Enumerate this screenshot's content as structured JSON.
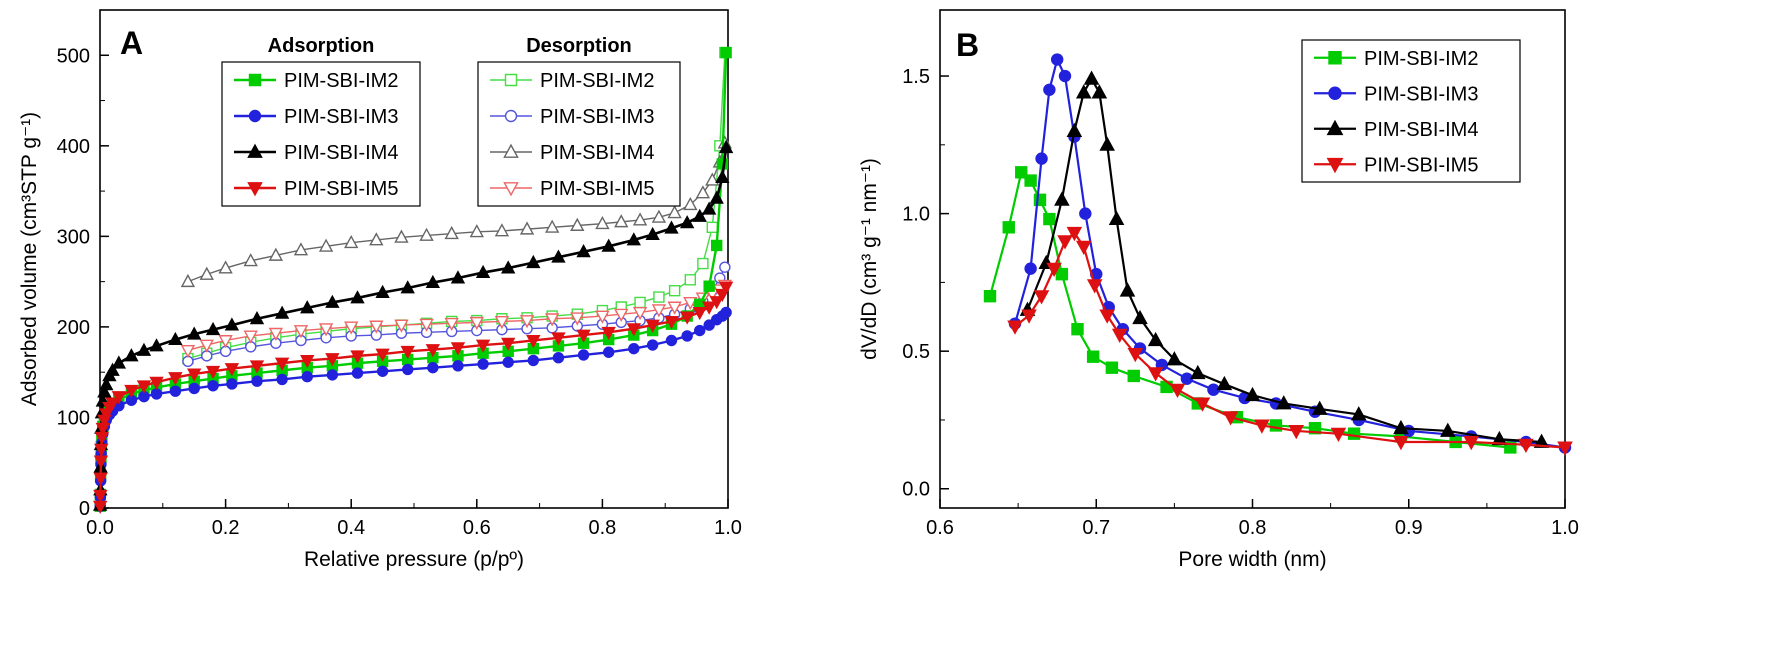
{
  "figure": {
    "background": "#ffffff",
    "panel_labels": [
      "A",
      "B"
    ]
  },
  "colors": {
    "im2_green": "#00cc00",
    "im3_blue": "#2222dd",
    "im4_black": "#000000",
    "im5_red": "#dd1111",
    "im2_green_open": "#44dd44",
    "im3_blue_open": "#5555dd",
    "im4_gray_open": "#666666",
    "im5_red_open": "#ee6666"
  },
  "chart_data": [
    {
      "type": "line",
      "panel_label": "A",
      "xlabel": "Relative pressure (p/pº)",
      "ylabel": "Adsorbed volume (cm³STP g⁻¹)",
      "xlim": [
        0,
        1.0
      ],
      "ylim": [
        0,
        550
      ],
      "x_ticks": [
        0.0,
        0.2,
        0.4,
        0.6,
        0.8,
        1.0
      ],
      "x_tick_labels": [
        "0.0",
        "0.2",
        "0.4",
        "0.6",
        "0.8",
        "1.0"
      ],
      "y_ticks": [
        0,
        100,
        200,
        300,
        400,
        500
      ],
      "y_tick_labels": [
        "0",
        "100",
        "200",
        "300",
        "400",
        "500"
      ],
      "x_minor_step": 0.1,
      "y_minor_step": 50,
      "marker_size": 5,
      "grid": false,
      "legends": [
        {
          "title": "Adsorption",
          "entries": [
            4,
            5,
            6,
            7
          ]
        },
        {
          "title": "Desorption",
          "entries": [
            0,
            1,
            2,
            3
          ]
        }
      ],
      "series": [
        {
          "name": "PIM-SBI-IM2",
          "group": "Desorption",
          "color": "#44dd44",
          "marker": "square",
          "filled": false,
          "line_width": 1.4,
          "x": [
            0.14,
            0.17,
            0.2,
            0.24,
            0.28,
            0.32,
            0.36,
            0.4,
            0.44,
            0.48,
            0.52,
            0.56,
            0.6,
            0.64,
            0.68,
            0.72,
            0.76,
            0.8,
            0.83,
            0.86,
            0.89,
            0.915,
            0.94,
            0.96,
            0.975,
            0.987,
            0.995
          ],
          "y": [
            165,
            171,
            177,
            183,
            188,
            192,
            195,
            198,
            200,
            202,
            204,
            206,
            207,
            209,
            210,
            212,
            214,
            218,
            222,
            227,
            233,
            240,
            252,
            270,
            310,
            400,
            503
          ]
        },
        {
          "name": "PIM-SBI-IM3",
          "group": "Desorption",
          "color": "#5555dd",
          "marker": "circle",
          "filled": false,
          "line_width": 1.4,
          "x": [
            0.14,
            0.17,
            0.2,
            0.24,
            0.28,
            0.32,
            0.36,
            0.4,
            0.44,
            0.48,
            0.52,
            0.56,
            0.6,
            0.64,
            0.68,
            0.72,
            0.76,
            0.8,
            0.83,
            0.86,
            0.89,
            0.915,
            0.94,
            0.96,
            0.975,
            0.987,
            0.995
          ],
          "y": [
            162,
            168,
            173,
            178,
            182,
            185,
            188,
            190,
            191,
            193,
            194,
            195,
            196,
            197,
            198,
            199,
            201,
            203,
            205,
            207,
            210,
            214,
            220,
            228,
            240,
            254,
            266
          ]
        },
        {
          "name": "PIM-SBI-IM4",
          "group": "Desorption",
          "color": "#666666",
          "marker": "triangle-up",
          "filled": false,
          "line_width": 1.4,
          "x": [
            0.14,
            0.17,
            0.2,
            0.24,
            0.28,
            0.32,
            0.36,
            0.4,
            0.44,
            0.48,
            0.52,
            0.56,
            0.6,
            0.64,
            0.68,
            0.72,
            0.76,
            0.8,
            0.83,
            0.86,
            0.89,
            0.915,
            0.94,
            0.96,
            0.975,
            0.987,
            0.995
          ],
          "y": [
            250,
            258,
            265,
            273,
            279,
            285,
            289,
            293,
            296,
            299,
            301,
            303,
            305,
            306,
            308,
            310,
            312,
            314,
            316,
            318,
            321,
            326,
            335,
            348,
            362,
            382,
            403
          ]
        },
        {
          "name": "PIM-SBI-IM5",
          "group": "Desorption",
          "color": "#ee6666",
          "marker": "triangle-down",
          "filled": false,
          "line_width": 1.4,
          "x": [
            0.14,
            0.17,
            0.2,
            0.24,
            0.28,
            0.32,
            0.36,
            0.4,
            0.44,
            0.48,
            0.52,
            0.56,
            0.6,
            0.64,
            0.68,
            0.72,
            0.76,
            0.8,
            0.83,
            0.86,
            0.89,
            0.915,
            0.94,
            0.96,
            0.975,
            0.987,
            0.995
          ],
          "y": [
            174,
            180,
            185,
            190,
            193,
            196,
            198,
            200,
            201,
            202,
            203,
            204,
            205,
            206,
            207,
            209,
            210,
            212,
            214,
            216,
            219,
            222,
            227,
            232,
            237,
            241,
            246
          ]
        },
        {
          "name": "PIM-SBI-IM2",
          "group": "Adsorption",
          "color": "#00cc00",
          "marker": "square",
          "filled": true,
          "line_width": 2.4,
          "x": [
            0.0003,
            0.0006,
            0.001,
            0.0015,
            0.002,
            0.003,
            0.0045,
            0.007,
            0.01,
            0.015,
            0.02,
            0.03,
            0.05,
            0.07,
            0.09,
            0.12,
            0.15,
            0.18,
            0.21,
            0.25,
            0.29,
            0.33,
            0.37,
            0.41,
            0.45,
            0.49,
            0.53,
            0.57,
            0.61,
            0.65,
            0.69,
            0.73,
            0.77,
            0.81,
            0.85,
            0.88,
            0.91,
            0.935,
            0.955,
            0.97,
            0.982,
            0.991,
            0.997
          ],
          "y": [
            2,
            15,
            35,
            55,
            68,
            80,
            90,
            98,
            105,
            111,
            115,
            120,
            126,
            130,
            133,
            137,
            140,
            143,
            146,
            149,
            152,
            155,
            157,
            160,
            162,
            164,
            166,
            168,
            171,
            173,
            176,
            179,
            182,
            186,
            191,
            196,
            203,
            212,
            225,
            245,
            290,
            380,
            503
          ]
        },
        {
          "name": "PIM-SBI-IM3",
          "group": "Adsorption",
          "color": "#2222dd",
          "marker": "circle",
          "filled": true,
          "line_width": 2.4,
          "x": [
            0.0003,
            0.0006,
            0.001,
            0.0015,
            0.002,
            0.003,
            0.0045,
            0.007,
            0.01,
            0.015,
            0.02,
            0.03,
            0.05,
            0.07,
            0.09,
            0.12,
            0.15,
            0.18,
            0.21,
            0.25,
            0.29,
            0.33,
            0.37,
            0.41,
            0.45,
            0.49,
            0.53,
            0.57,
            0.61,
            0.65,
            0.69,
            0.73,
            0.77,
            0.81,
            0.85,
            0.88,
            0.91,
            0.935,
            0.955,
            0.97,
            0.982,
            0.991,
            0.997
          ],
          "y": [
            2,
            12,
            30,
            48,
            60,
            72,
            82,
            90,
            97,
            103,
            107,
            113,
            119,
            123,
            126,
            129,
            132,
            135,
            137,
            140,
            142,
            145,
            147,
            149,
            151,
            153,
            155,
            157,
            159,
            161,
            163,
            166,
            169,
            172,
            176,
            180,
            185,
            190,
            196,
            202,
            208,
            212,
            216
          ]
        },
        {
          "name": "PIM-SBI-IM4",
          "group": "Adsorption",
          "color": "#000000",
          "marker": "triangle-up",
          "filled": true,
          "line_width": 2.6,
          "x": [
            0.0003,
            0.0006,
            0.001,
            0.0015,
            0.002,
            0.003,
            0.0045,
            0.007,
            0.01,
            0.015,
            0.02,
            0.03,
            0.05,
            0.07,
            0.09,
            0.12,
            0.15,
            0.18,
            0.21,
            0.25,
            0.29,
            0.33,
            0.37,
            0.41,
            0.45,
            0.49,
            0.53,
            0.57,
            0.61,
            0.65,
            0.69,
            0.73,
            0.77,
            0.81,
            0.85,
            0.88,
            0.91,
            0.935,
            0.955,
            0.97,
            0.982,
            0.991,
            0.997
          ],
          "y": [
            3,
            20,
            45,
            70,
            88,
            105,
            118,
            128,
            136,
            146,
            152,
            160,
            168,
            174,
            179,
            186,
            192,
            197,
            202,
            209,
            215,
            221,
            227,
            232,
            238,
            243,
            249,
            254,
            260,
            265,
            271,
            277,
            283,
            289,
            296,
            302,
            309,
            315,
            322,
            330,
            342,
            365,
            398
          ]
        },
        {
          "name": "PIM-SBI-IM5",
          "group": "Adsorption",
          "color": "#dd1111",
          "marker": "triangle-down",
          "filled": true,
          "line_width": 2.4,
          "x": [
            0.0003,
            0.0006,
            0.001,
            0.0015,
            0.002,
            0.003,
            0.0045,
            0.007,
            0.01,
            0.015,
            0.02,
            0.03,
            0.05,
            0.07,
            0.09,
            0.12,
            0.15,
            0.18,
            0.21,
            0.25,
            0.29,
            0.33,
            0.37,
            0.41,
            0.45,
            0.49,
            0.53,
            0.57,
            0.61,
            0.65,
            0.69,
            0.73,
            0.77,
            0.81,
            0.85,
            0.88,
            0.91,
            0.935,
            0.955,
            0.97,
            0.982,
            0.991,
            0.997
          ],
          "y": [
            2,
            14,
            33,
            52,
            65,
            78,
            88,
            97,
            104,
            111,
            116,
            123,
            130,
            135,
            139,
            144,
            148,
            151,
            154,
            157,
            160,
            163,
            165,
            168,
            170,
            173,
            175,
            177,
            180,
            182,
            185,
            188,
            191,
            194,
            198,
            202,
            206,
            211,
            216,
            222,
            228,
            236,
            244
          ]
        }
      ]
    },
    {
      "type": "line",
      "panel_label": "B",
      "xlabel": "Pore width (nm)",
      "ylabel": "dV/dD (cm³ g⁻¹ nm⁻¹)",
      "xlim": [
        0.6,
        1.0
      ],
      "ylim": [
        -0.07,
        1.74
      ],
      "x_ticks": [
        0.6,
        0.7,
        0.8,
        0.9,
        1.0
      ],
      "x_tick_labels": [
        "0.6",
        "0.7",
        "0.8",
        "0.9",
        "1.0"
      ],
      "y_ticks": [
        0.0,
        0.5,
        1.0,
        1.5
      ],
      "y_tick_labels": [
        "0.0",
        "0.5",
        "1.0",
        "1.5"
      ],
      "x_minor_step": 0.05,
      "y_minor_step": 0.25,
      "marker_size": 5.5,
      "grid": false,
      "legends": [
        {
          "title": "",
          "entries": [
            0,
            1,
            2,
            3
          ]
        }
      ],
      "series": [
        {
          "name": "PIM-SBI-IM2",
          "group": "PSD",
          "color": "#00cc00",
          "marker": "square",
          "filled": true,
          "line_width": 2.2,
          "x": [
            0.632,
            0.644,
            0.652,
            0.658,
            0.664,
            0.67,
            0.678,
            0.688,
            0.698,
            0.71,
            0.724,
            0.745,
            0.765,
            0.79,
            0.815,
            0.84,
            0.865,
            0.895,
            0.93,
            0.965
          ],
          "y": [
            0.7,
            0.95,
            1.15,
            1.12,
            1.05,
            0.98,
            0.78,
            0.58,
            0.48,
            0.44,
            0.41,
            0.37,
            0.31,
            0.26,
            0.23,
            0.22,
            0.2,
            0.19,
            0.17,
            0.15
          ]
        },
        {
          "name": "PIM-SBI-IM3",
          "group": "PSD",
          "color": "#2222dd",
          "marker": "circle",
          "filled": true,
          "line_width": 2.2,
          "x": [
            0.648,
            0.658,
            0.665,
            0.67,
            0.675,
            0.68,
            0.686,
            0.693,
            0.7,
            0.708,
            0.717,
            0.728,
            0.742,
            0.758,
            0.775,
            0.795,
            0.815,
            0.84,
            0.868,
            0.9,
            0.94,
            0.975,
            1.0
          ],
          "y": [
            0.6,
            0.8,
            1.2,
            1.45,
            1.56,
            1.5,
            1.28,
            1.0,
            0.78,
            0.66,
            0.58,
            0.51,
            0.45,
            0.4,
            0.36,
            0.33,
            0.31,
            0.28,
            0.25,
            0.21,
            0.19,
            0.17,
            0.15
          ]
        },
        {
          "name": "PIM-SBI-IM4",
          "group": "PSD",
          "color": "#000000",
          "marker": "triangle-up",
          "filled": true,
          "line_width": 2.2,
          "x": [
            0.656,
            0.668,
            0.678,
            0.686,
            0.692,
            0.697,
            0.702,
            0.707,
            0.713,
            0.72,
            0.728,
            0.738,
            0.75,
            0.765,
            0.782,
            0.8,
            0.82,
            0.843,
            0.868,
            0.895,
            0.925,
            0.958,
            0.985
          ],
          "y": [
            0.65,
            0.82,
            1.05,
            1.3,
            1.44,
            1.49,
            1.44,
            1.25,
            0.98,
            0.72,
            0.62,
            0.54,
            0.47,
            0.42,
            0.38,
            0.34,
            0.31,
            0.29,
            0.27,
            0.22,
            0.21,
            0.18,
            0.17
          ]
        },
        {
          "name": "PIM-SBI-IM5",
          "group": "PSD",
          "color": "#dd1111",
          "marker": "triangle-down",
          "filled": true,
          "line_width": 2.2,
          "x": [
            0.648,
            0.657,
            0.665,
            0.673,
            0.68,
            0.686,
            0.692,
            0.699,
            0.707,
            0.715,
            0.725,
            0.738,
            0.752,
            0.768,
            0.786,
            0.806,
            0.828,
            0.855,
            0.895,
            0.94,
            0.975,
            1.0
          ],
          "y": [
            0.59,
            0.63,
            0.7,
            0.8,
            0.9,
            0.93,
            0.88,
            0.74,
            0.63,
            0.56,
            0.49,
            0.42,
            0.36,
            0.31,
            0.26,
            0.23,
            0.21,
            0.2,
            0.17,
            0.17,
            0.16,
            0.15
          ]
        }
      ]
    }
  ]
}
